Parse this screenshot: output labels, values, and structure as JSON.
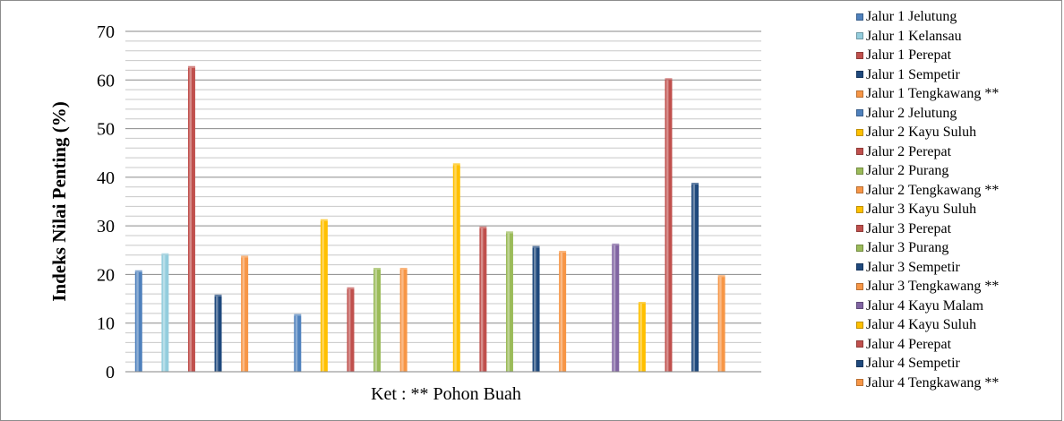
{
  "chart_data": {
    "type": "bar",
    "ylabel": "Indeks Nilai Penting (%)",
    "xlabel": "Ket : ** Pohon Buah",
    "ylim": [
      0,
      70
    ],
    "yticks": [
      0,
      10,
      20,
      30,
      40,
      50,
      60,
      70
    ],
    "grid": true,
    "legend_position": "right",
    "series": [
      {
        "name": "Jalur 1 Jelutung",
        "value": 20.5,
        "color": "#4f81bd"
      },
      {
        "name": "Jalur 1 Kelansau",
        "value": 24.0,
        "color": "#93cddd"
      },
      {
        "name": "Jalur 1 Perepat",
        "value": 62.5,
        "color": "#c0504d"
      },
      {
        "name": "Jalur 1 Sempetir",
        "value": 15.5,
        "color": "#1f497d"
      },
      {
        "name": "Jalur 1 Tengkawang  **",
        "value": 23.5,
        "color": "#f79646"
      },
      {
        "name": "Jalur 2 Jelutung",
        "value": 11.5,
        "color": "#4f81bd"
      },
      {
        "name": "Jalur 2 Kayu Suluh",
        "value": 31.0,
        "color": "#ffc000"
      },
      {
        "name": "Jalur 2 Perepat",
        "value": 17.0,
        "color": "#c0504d"
      },
      {
        "name": "Jalur 2 Purang",
        "value": 21.0,
        "color": "#9bbb59"
      },
      {
        "name": "Jalur 2 Tengkawang **",
        "value": 21.0,
        "color": "#f79646"
      },
      {
        "name": "Jalur 3 Kayu Suluh",
        "value": 42.5,
        "color": "#ffc000"
      },
      {
        "name": "Jalur 3 Perepat",
        "value": 29.5,
        "color": "#c0504d"
      },
      {
        "name": "Jalur 3 Purang",
        "value": 28.5,
        "color": "#9bbb59"
      },
      {
        "name": "Jalur 3 Sempetir",
        "value": 25.5,
        "color": "#1f497d"
      },
      {
        "name": "Jalur 3 Tengkawang **",
        "value": 24.5,
        "color": "#f79646"
      },
      {
        "name": "Jalur 4 Kayu Malam",
        "value": 26.0,
        "color": "#8064a2"
      },
      {
        "name": "Jalur 4 Kayu Suluh",
        "value": 14.0,
        "color": "#ffc000"
      },
      {
        "name": "Jalur 4 Perepat",
        "value": 60.0,
        "color": "#c0504d"
      },
      {
        "name": "Jalur 4 Sempetir",
        "value": 38.5,
        "color": "#1f497d"
      },
      {
        "name": "Jalur 4 Tengkawang **",
        "value": 19.5,
        "color": "#f79646"
      }
    ]
  }
}
